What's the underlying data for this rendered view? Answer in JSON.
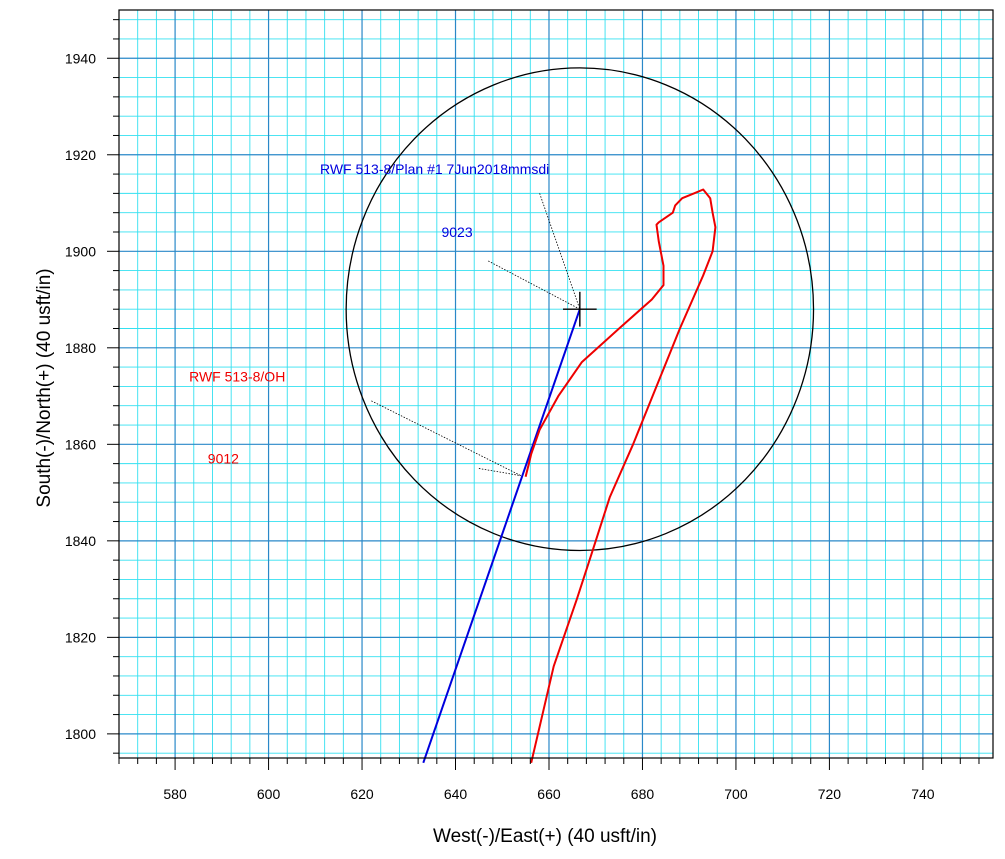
{
  "chart_data": {
    "type": "line",
    "xlabel": "West(-)/East(+) (40 usft/in)",
    "ylabel": "South(-)/North(+) (40 usft/in)",
    "xlim": [
      568,
      755
    ],
    "ylim": [
      1795,
      1950
    ],
    "xticks": [
      580,
      600,
      620,
      640,
      660,
      680,
      700,
      720,
      740
    ],
    "yticks": [
      1800,
      1820,
      1840,
      1860,
      1880,
      1900,
      1920,
      1940
    ],
    "grid": true,
    "series": [
      {
        "name": "RWF 513-8/Plan #1 7Jun2018mmsdi",
        "color": "#0000dd",
        "points": [
          [
            633.1,
            1794
          ],
          [
            666.6,
            1888
          ]
        ]
      },
      {
        "name": "RWF 513-8/OH",
        "color": "#ee0000",
        "points": [
          [
            656.2,
            1794
          ],
          [
            661,
            1814
          ],
          [
            666,
            1828
          ],
          [
            669,
            1837
          ],
          [
            673,
            1849
          ],
          [
            678,
            1860
          ],
          [
            683,
            1872
          ],
          [
            688,
            1884
          ],
          [
            693,
            1895
          ],
          [
            695,
            1900
          ],
          [
            695.6,
            1905
          ],
          [
            695,
            1908
          ],
          [
            694.5,
            1911
          ],
          [
            693,
            1912.8
          ],
          [
            691,
            1912
          ],
          [
            688.5,
            1911
          ],
          [
            687,
            1909.5
          ],
          [
            686.5,
            1908
          ],
          [
            683.5,
            1906
          ],
          [
            683,
            1905.5
          ],
          [
            683.5,
            1902
          ],
          [
            684.5,
            1897
          ],
          [
            684.5,
            1893
          ],
          [
            682,
            1890
          ],
          [
            675,
            1884
          ],
          [
            667,
            1877
          ],
          [
            662,
            1870
          ],
          [
            658,
            1863
          ],
          [
            656.2,
            1858
          ],
          [
            655.7,
            1856
          ],
          [
            655,
            1853.3
          ]
        ]
      }
    ],
    "circle": {
      "center": [
        666.6,
        1888
      ],
      "radius": 50,
      "color": "#000000"
    },
    "crosshair": {
      "x": 666.6,
      "y": 1888,
      "size": 3.6
    },
    "annotations": [
      {
        "text": "RWF 513-8/Plan #1 7Jun2018mmsdi",
        "color": "#0000dd",
        "anchor": [
          611,
          1916
        ],
        "leader": [
          [
            658,
            1912
          ],
          [
            666.6,
            1888
          ]
        ]
      },
      {
        "text": "9023",
        "color": "#0000dd",
        "anchor": [
          637,
          1903
        ],
        "leader": [
          [
            647,
            1898
          ],
          [
            666.6,
            1888
          ]
        ]
      },
      {
        "text": "RWF 513-8/OH",
        "color": "#ee0000",
        "anchor": [
          583,
          1873
        ],
        "leader": [
          [
            622,
            1869
          ],
          [
            654,
            1853.5
          ]
        ]
      },
      {
        "text": "9012",
        "color": "#ee0000",
        "anchor": [
          587,
          1856
        ],
        "leader": [
          [
            645,
            1855
          ],
          [
            654,
            1853.5
          ]
        ]
      }
    ]
  }
}
